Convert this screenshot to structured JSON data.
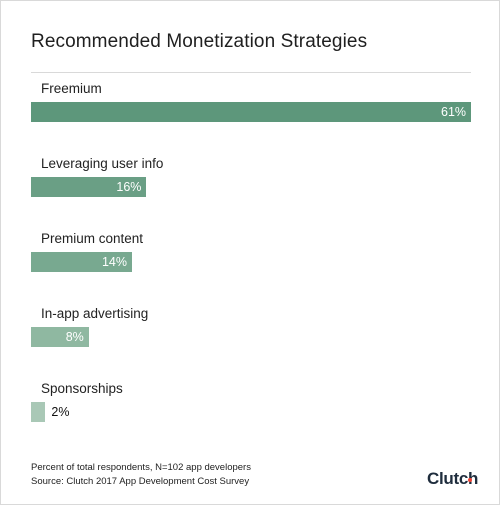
{
  "chart_data": {
    "type": "bar",
    "orientation": "horizontal",
    "title": "Recommended Monetization Strategies",
    "categories": [
      "Freemium",
      "Leveraging user info",
      "Premium content",
      "In-app advertising",
      "Sponsorships"
    ],
    "values": [
      61,
      16,
      14,
      8,
      2
    ],
    "value_labels": [
      "61%",
      "16%",
      "14%",
      "8%",
      "2%"
    ],
    "xlim": [
      0,
      61
    ],
    "colors": [
      "#5d977b",
      "#6a9f85",
      "#78a990",
      "#8fb8a1",
      "#a9c8b6"
    ],
    "grid": false
  },
  "footnote": {
    "line1": "Percent of total respondents, N=102 app developers",
    "line2": "Source: Clutch 2017 App Development Cost Survey"
  },
  "logo": {
    "text": "Clutch",
    "dot_color": "#ef4335"
  }
}
